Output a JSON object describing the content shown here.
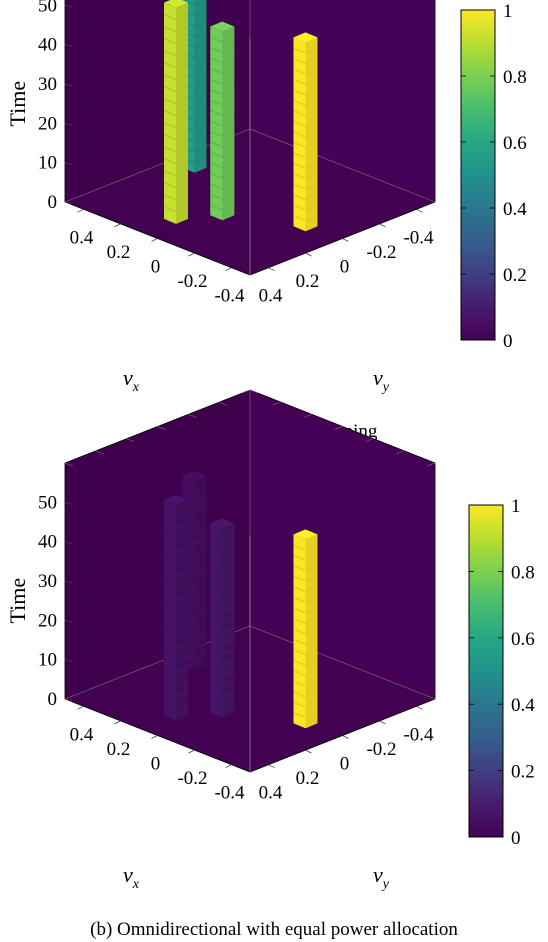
{
  "chart_data": [
    {
      "type": "heatmap",
      "title": "",
      "caption": "(a) RL-based beamforming",
      "xlabel_main": "ν",
      "xlabel_sub": "x",
      "ylabel_main": "ν",
      "ylabel_sub": "y",
      "zlabel": "Time",
      "x_ticks": [
        "0.4",
        "0.2",
        "0",
        "-0.2",
        "-0.4"
      ],
      "y_ticks": [
        "0.4",
        "0.2",
        "0",
        "-0.2",
        "-0.4"
      ],
      "z_ticks": [
        "0",
        "10",
        "20",
        "30",
        "40",
        "50"
      ],
      "colorbar_ticks": [
        "0",
        "0.2",
        "0.4",
        "0.6",
        "0.8",
        "1"
      ],
      "colorbar_range": [
        0,
        1
      ],
      "columns": [
        {
          "nu_x": 0.35,
          "nu_y": -0.05,
          "time": [
            0,
            48
          ],
          "value": 0.55
        },
        {
          "nu_x": 0.05,
          "nu_y": 0.35,
          "time": [
            0,
            55
          ],
          "value": 0.92
        },
        {
          "nu_x": -0.05,
          "nu_y": 0.2,
          "time": [
            0,
            48
          ],
          "value": 0.78
        },
        {
          "nu_x": -0.35,
          "nu_y": 0.05,
          "time": [
            0,
            48
          ],
          "value": 1.0
        }
      ]
    },
    {
      "type": "heatmap",
      "title": "",
      "caption": "(b) Omnidirectional with equal power allocation",
      "xlabel_main": "ν",
      "xlabel_sub": "x",
      "ylabel_main": "ν",
      "ylabel_sub": "y",
      "zlabel": "Time",
      "x_ticks": [
        "0.4",
        "0.2",
        "0",
        "-0.2",
        "-0.4"
      ],
      "y_ticks": [
        "0.4",
        "0.2",
        "0",
        "-0.2",
        "-0.4"
      ],
      "z_ticks": [
        "0",
        "10",
        "20",
        "30",
        "40",
        "50"
      ],
      "colorbar_ticks": [
        "0",
        "0.2",
        "0.4",
        "0.6",
        "0.8",
        "1"
      ],
      "colorbar_range": [
        0,
        1
      ],
      "columns": [
        {
          "nu_x": 0.35,
          "nu_y": -0.05,
          "time": [
            0,
            48
          ],
          "value": 0.04
        },
        {
          "nu_x": 0.05,
          "nu_y": 0.35,
          "time": [
            0,
            55
          ],
          "value": 0.06
        },
        {
          "nu_x": -0.05,
          "nu_y": 0.2,
          "time": [
            0,
            48
          ],
          "value": 0.07
        },
        {
          "nu_x": -0.35,
          "nu_y": 0.05,
          "time": [
            0,
            48
          ],
          "value": 1.0
        }
      ]
    }
  ]
}
